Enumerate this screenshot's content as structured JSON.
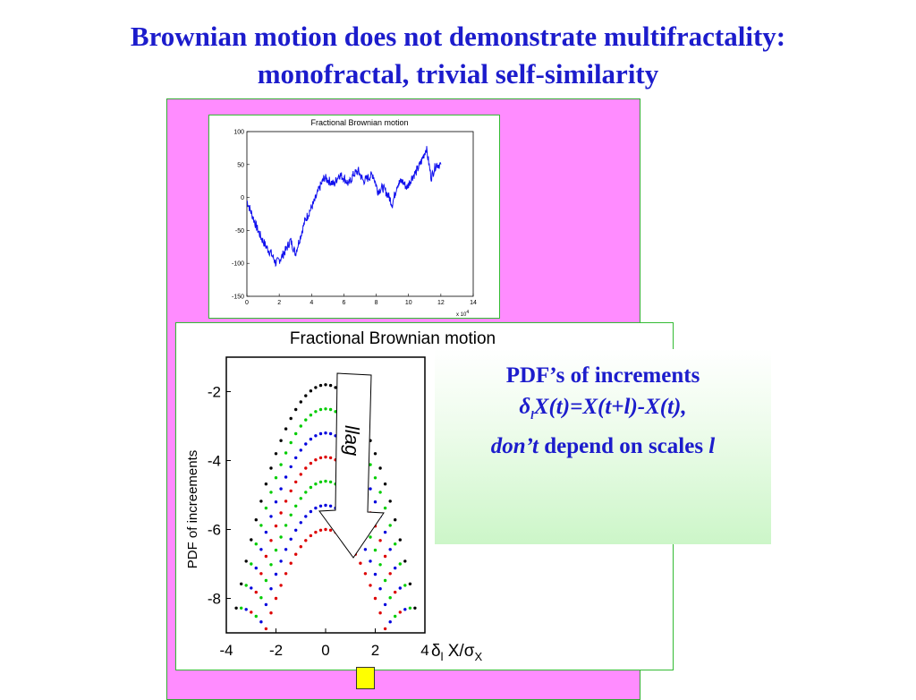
{
  "slide": {
    "title_line1": "Brownian motion does not demonstrate multifractality:",
    "title_line2": "monofractal, trivial self-similarity"
  },
  "callout": {
    "line1": "PDF’s of increments",
    "line2_delta": "δ",
    "line2_sub": "l",
    "line2_rest": "X(t)=X(t+l)-X(t),",
    "line3_italic": "don’t",
    "line3_mid": " depend on scales ",
    "line3_l": "l"
  },
  "colors": {
    "title": "#1c1ccc",
    "panel": "#ff8cff",
    "trace": "#1010ee",
    "curves": [
      "#000000",
      "#00cc00",
      "#0000dd",
      "#dd0000",
      "#00cc00",
      "#0000dd",
      "#dd0000"
    ]
  },
  "chart_data": [
    {
      "type": "line",
      "title": "Fractional Brownian motion",
      "x_multiplier": "x 10",
      "x_multiplier_exp": "4",
      "xlim": [
        0,
        14
      ],
      "ylim": [
        -150,
        100
      ],
      "xticks": [
        0,
        2,
        4,
        6,
        8,
        10,
        12,
        14
      ],
      "yticks": [
        100,
        50,
        0,
        -50,
        -100,
        -150
      ],
      "series": [
        {
          "x": [
            0.0,
            0.3,
            0.6,
            0.9,
            1.2,
            1.5,
            1.8,
            2.1,
            2.4,
            2.7,
            3.0,
            3.3,
            3.6,
            3.9,
            4.2,
            4.5,
            4.8,
            5.1,
            5.4,
            5.7,
            6.0,
            6.3,
            6.6,
            6.9,
            7.2,
            7.5,
            7.8,
            8.1,
            8.4,
            8.7,
            9.0,
            9.3,
            9.6,
            9.9,
            10.2,
            10.5,
            10.8,
            11.1,
            11.4,
            11.7,
            12.0
          ],
          "y": [
            -5,
            -25,
            -45,
            -62,
            -75,
            -85,
            -100,
            -92,
            -80,
            -65,
            -85,
            -60,
            -35,
            -20,
            -5,
            15,
            30,
            25,
            20,
            35,
            30,
            20,
            35,
            40,
            25,
            30,
            35,
            10,
            15,
            5,
            -10,
            20,
            25,
            15,
            30,
            40,
            55,
            75,
            30,
            50,
            50
          ]
        }
      ]
    },
    {
      "type": "scatter",
      "title": "Fractional Brownian motion",
      "ylabel": "PDF of increements",
      "xlabel_delta": "δ",
      "xlabel_sub": "l",
      "xlabel_rest": " X/σ",
      "xlabel_sub2": "X",
      "xlim": [
        -4,
        4
      ],
      "ylim": [
        -9,
        -1
      ],
      "xticks": [
        -4,
        -2,
        0,
        2,
        4
      ],
      "yticks": [
        -2,
        -4,
        -6,
        -8
      ],
      "arrow_label": "l",
      "arrow_label_rest": "lag",
      "series": [
        {
          "offset": -1.8,
          "color": "#000000"
        },
        {
          "offset": -2.5,
          "color": "#00cc00"
        },
        {
          "offset": -3.2,
          "color": "#0000dd"
        },
        {
          "offset": -3.9,
          "color": "#dd0000"
        },
        {
          "offset": -4.6,
          "color": "#00cc00"
        },
        {
          "offset": -5.3,
          "color": "#0000dd"
        },
        {
          "offset": -6.0,
          "color": "#dd0000"
        }
      ],
      "curvature": 0.5
    }
  ]
}
